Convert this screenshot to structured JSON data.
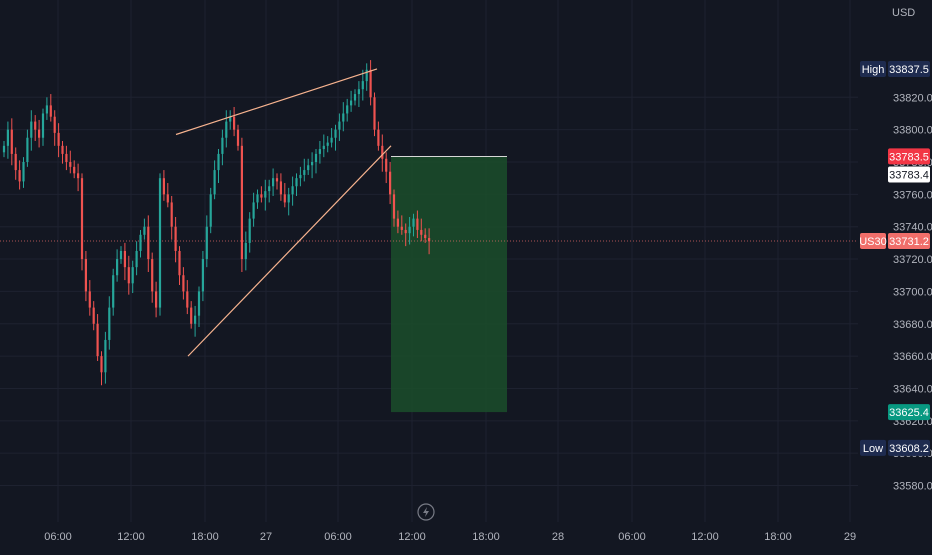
{
  "colors": {
    "background": "#131722",
    "grid": "#1e2230",
    "axis_text": "#b2b5be",
    "up": "#26a69a",
    "down": "#ef5350",
    "wedge": "#f7b38f",
    "position_zone": "#1b4d2a",
    "high_low_badge": "#1e2b4f",
    "target_badge": "#089981",
    "stop_badge": "#f23645",
    "current_badge": "#f06e6a"
  },
  "currency": "USD",
  "chart_data": {
    "type": "candlestick",
    "instrument": "US30",
    "currency": "USD",
    "time_axis_labels": [
      "06:00",
      "12:00",
      "18:00",
      "27",
      "06:00",
      "12:00",
      "18:00",
      "28",
      "06:00",
      "12:00",
      "18:00",
      "29"
    ],
    "y_tick_labels": [
      "33580.0",
      "33600.0",
      "33620.0",
      "33640.0",
      "33660.0",
      "33680.0",
      "33700.0",
      "33720.0",
      "33740.0",
      "33760.0",
      "33780.0",
      "33800.0",
      "33820.0"
    ],
    "ylim": [
      33576,
      33848
    ],
    "grid": true,
    "session_high": {
      "label": "High",
      "value": "33837.5"
    },
    "session_low": {
      "label": "Low",
      "value": "33608.2"
    },
    "current_price": {
      "symbol": "US30",
      "value": "33731.2"
    },
    "stop_loss": "33783.5",
    "entry": "33783.4",
    "take_profit": "33625.4",
    "closes": [
      33790,
      33800,
      33785,
      33775,
      33768,
      33780,
      33795,
      33805,
      33800,
      33795,
      33810,
      33815,
      33808,
      33798,
      33790,
      33785,
      33780,
      33777,
      33773,
      33770,
      33720,
      33700,
      33690,
      33680,
      33660,
      33650,
      33670,
      33690,
      33710,
      33720,
      33725,
      33715,
      33705,
      33715,
      33725,
      33735,
      33740,
      33720,
      33700,
      33690,
      33770,
      33760,
      33755,
      33740,
      33725,
      33710,
      33700,
      33690,
      33680,
      33685,
      33700,
      33720,
      33740,
      33760,
      33775,
      33785,
      33795,
      33805,
      33808,
      33800,
      33790,
      33720,
      33730,
      33745,
      33755,
      33760,
      33758,
      33762,
      33765,
      33770,
      33768,
      33760,
      33755,
      33760,
      33765,
      33770,
      33772,
      33775,
      33778,
      33780,
      33785,
      33788,
      33790,
      33792,
      33795,
      33800,
      33805,
      33810,
      33815,
      33818,
      33822,
      33825,
      33830,
      33837,
      33820,
      33800,
      33790,
      33782,
      33774,
      33760,
      33745,
      33740,
      33738,
      33736,
      33740,
      33745,
      33738,
      33735,
      33733,
      33731
    ]
  }
}
